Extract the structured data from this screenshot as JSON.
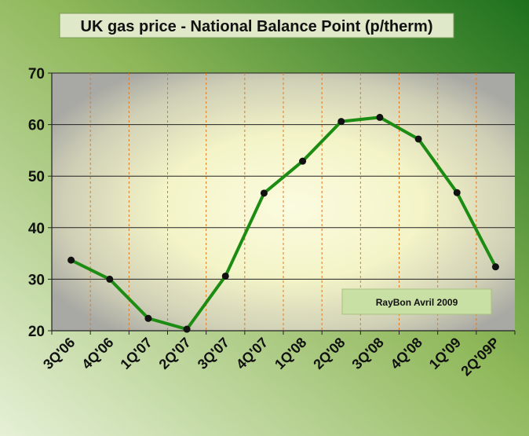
{
  "chart_data": {
    "type": "line",
    "title": "UK gas price - National Balance Point (p/therm)",
    "categories": [
      "3Q'06",
      "4Q'06",
      "1Q'07",
      "2Q'07",
      "3Q'07",
      "4Q'07",
      "1Q'08",
      "2Q'08",
      "3Q'08",
      "4Q'08",
      "1Q'09",
      "2Q'09P"
    ],
    "series": [
      {
        "values": [
          33.7,
          30.0,
          22.4,
          20.3,
          30.6,
          46.7,
          52.9,
          60.6,
          61.4,
          57.2,
          46.8,
          32.4
        ]
      }
    ],
    "ylim": [
      20,
      70
    ],
    "yticks": [
      20,
      30,
      40,
      50,
      60,
      70
    ],
    "xlabel": "",
    "ylabel": "",
    "grid": true,
    "line_color": "#1c8c12",
    "marker_color": "#111111",
    "gridline_color": "#e07a1e",
    "annotation": "RayBon Avril 2009"
  }
}
